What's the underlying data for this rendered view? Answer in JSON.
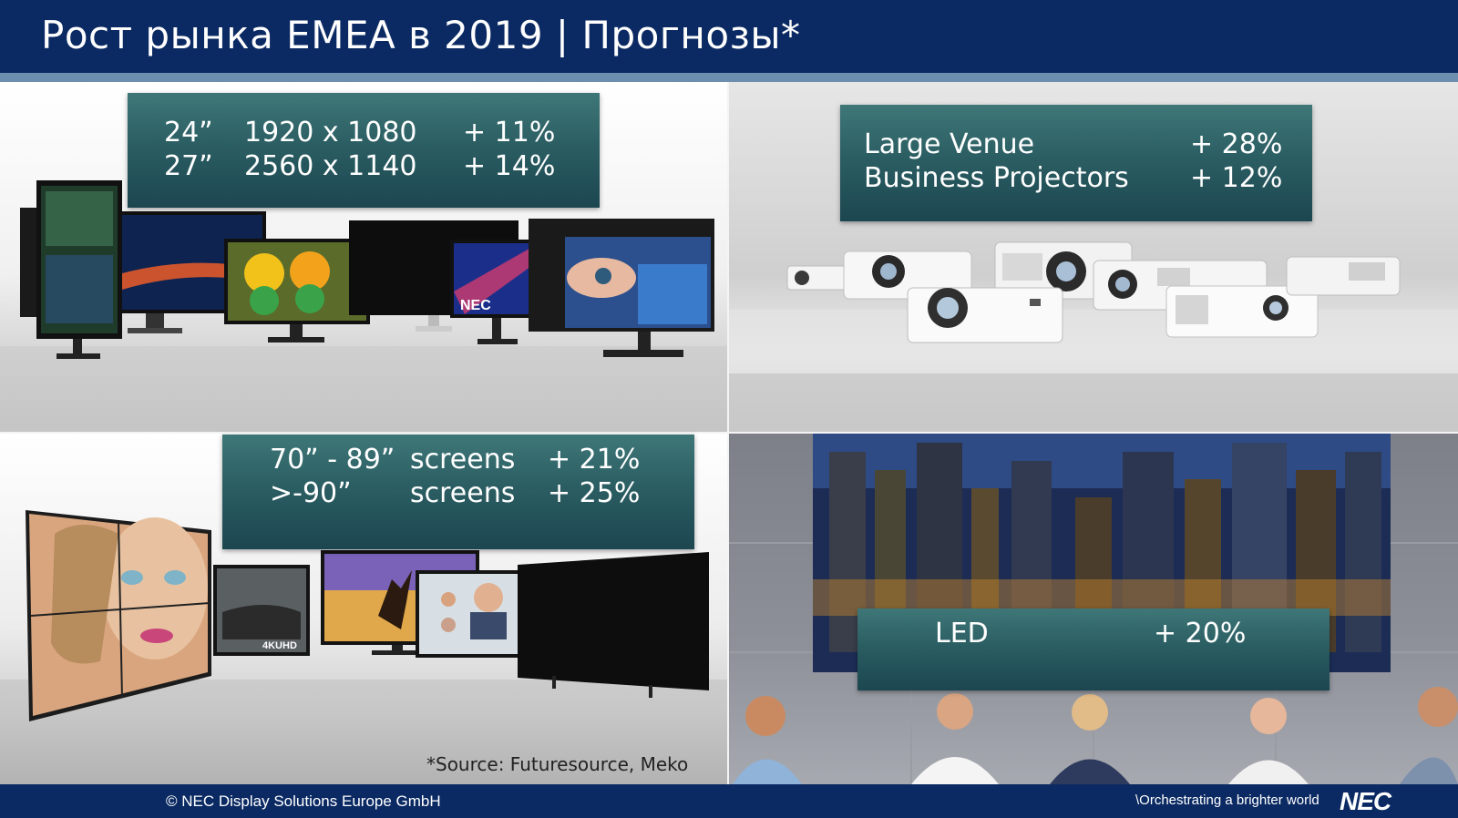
{
  "slide": {
    "title": "Рост рынка EMEA в 2019 | Прогнозы*",
    "colors": {
      "header": "#0b2a63",
      "accent": "#6c8fb0",
      "box": "#2b5e63"
    }
  },
  "monitors": {
    "rows": [
      {
        "size": "24”",
        "resolution": "1920 x 1080",
        "growth": "+ 11%"
      },
      {
        "size": "27”",
        "resolution": "2560 x 1140",
        "growth": "+ 14%"
      }
    ],
    "brand_label": "NEC"
  },
  "projectors": {
    "rows": [
      {
        "label": "Large Venue",
        "growth": "+ 28%"
      },
      {
        "label": "Business Projectors",
        "growth": "+ 12%"
      }
    ]
  },
  "large_displays": {
    "rows": [
      {
        "size": "70” - 89”",
        "label": "screens",
        "growth": "+ 21%"
      },
      {
        "size": ">-90”",
        "label": "screens",
        "growth": "+ 25%"
      }
    ],
    "badge": "4KUHD"
  },
  "led": {
    "label": "LED",
    "growth": "+ 20%"
  },
  "source_note": "*Source: Futuresource, Meko",
  "footer": {
    "copyright": "© NEC Display Solutions Europe GmbH",
    "tagline": "\\Orchestrating a brighter world",
    "brand": "NEC"
  }
}
